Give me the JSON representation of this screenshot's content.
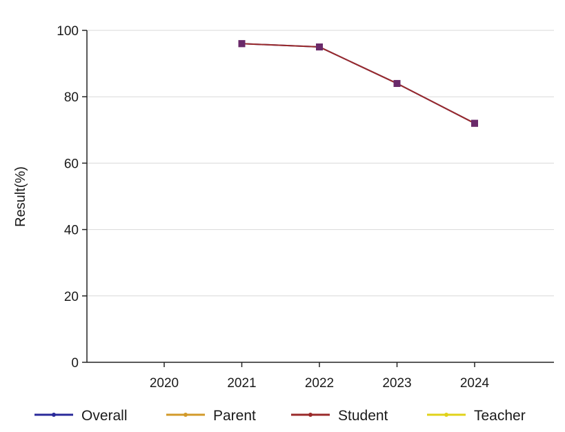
{
  "chart_data": {
    "type": "line",
    "categories": [
      "2020",
      "2021",
      "2022",
      "2023",
      "2024"
    ],
    "series": [
      {
        "name": "Overall",
        "color": "#2a2a9a",
        "values": [
          null,
          96,
          95,
          84,
          72
        ]
      },
      {
        "name": "Parent",
        "color": "#d29a2a",
        "values": [
          null,
          null,
          null,
          null,
          null
        ]
      },
      {
        "name": "Student",
        "color": "#9a2a2a",
        "values": [
          null,
          96,
          95,
          84,
          72
        ]
      },
      {
        "name": "Teacher",
        "color": "#e0d21a",
        "values": [
          null,
          null,
          null,
          null,
          null
        ]
      }
    ],
    "ylabel": "Result(%)",
    "xlabel": "",
    "ylim": [
      0,
      100
    ],
    "yticks": [
      "0",
      "20",
      "40",
      "60",
      "80",
      "100"
    ],
    "grid": true,
    "legend": "bottom",
    "marker_color": "#6a2a6a"
  }
}
